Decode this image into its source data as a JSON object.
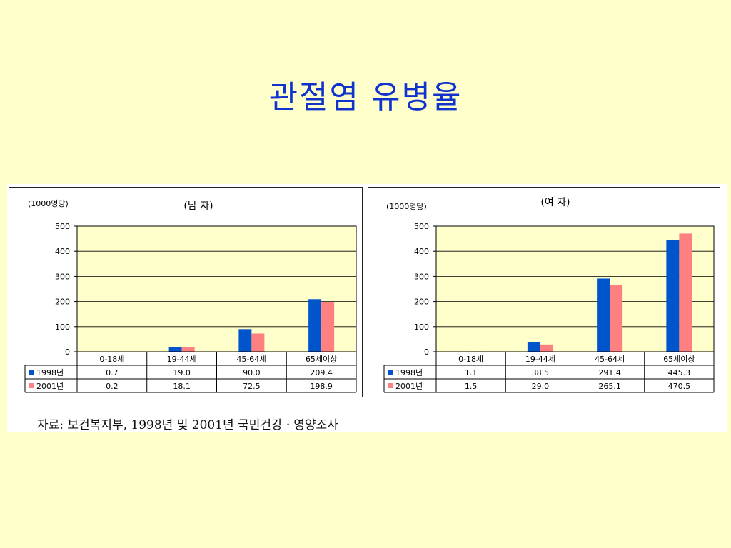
{
  "slide": {
    "title": "관절염 유병율",
    "source": "자료: 보건복지부, 1998년 및 2001년 국민건강ㆍ영양조사"
  },
  "colors": {
    "series_1998": "#0055cc",
    "series_2001": "#ff8080",
    "plot_bg": "#ffffcc"
  },
  "chart_data": [
    {
      "type": "bar",
      "title": "(남 자)",
      "unit": "(1000명당)",
      "categories": [
        "0-18세",
        "19-44세",
        "45-64세",
        "65세이상"
      ],
      "series": [
        {
          "name": "1998년",
          "values": [
            0.7,
            19.0,
            90.0,
            209.4
          ],
          "labels": [
            "0.7",
            "19.0",
            "90.0",
            "209.4"
          ]
        },
        {
          "name": "2001년",
          "values": [
            0.2,
            18.1,
            72.5,
            198.9
          ],
          "labels": [
            "0.2",
            "18.1",
            "72.5",
            "198.9"
          ]
        }
      ],
      "ylim": [
        0,
        500
      ],
      "yticks": [
        0,
        100,
        200,
        300,
        400,
        500
      ],
      "grid": true
    },
    {
      "type": "bar",
      "title": "(여 자)",
      "unit": "(1000명당)",
      "categories": [
        "0-18세",
        "19-44세",
        "45-64세",
        "65세이상"
      ],
      "series": [
        {
          "name": "1998년",
          "values": [
            1.1,
            38.5,
            291.4,
            445.3
          ],
          "labels": [
            "1.1",
            "38.5",
            "291.4",
            "445.3"
          ]
        },
        {
          "name": "2001년",
          "values": [
            1.5,
            29.0,
            265.1,
            470.5
          ],
          "labels": [
            "1.5",
            "29.0",
            "265.1",
            "470.5"
          ]
        }
      ],
      "ylim": [
        0,
        500
      ],
      "yticks": [
        0,
        100,
        200,
        300,
        400,
        500
      ],
      "grid": true
    }
  ]
}
